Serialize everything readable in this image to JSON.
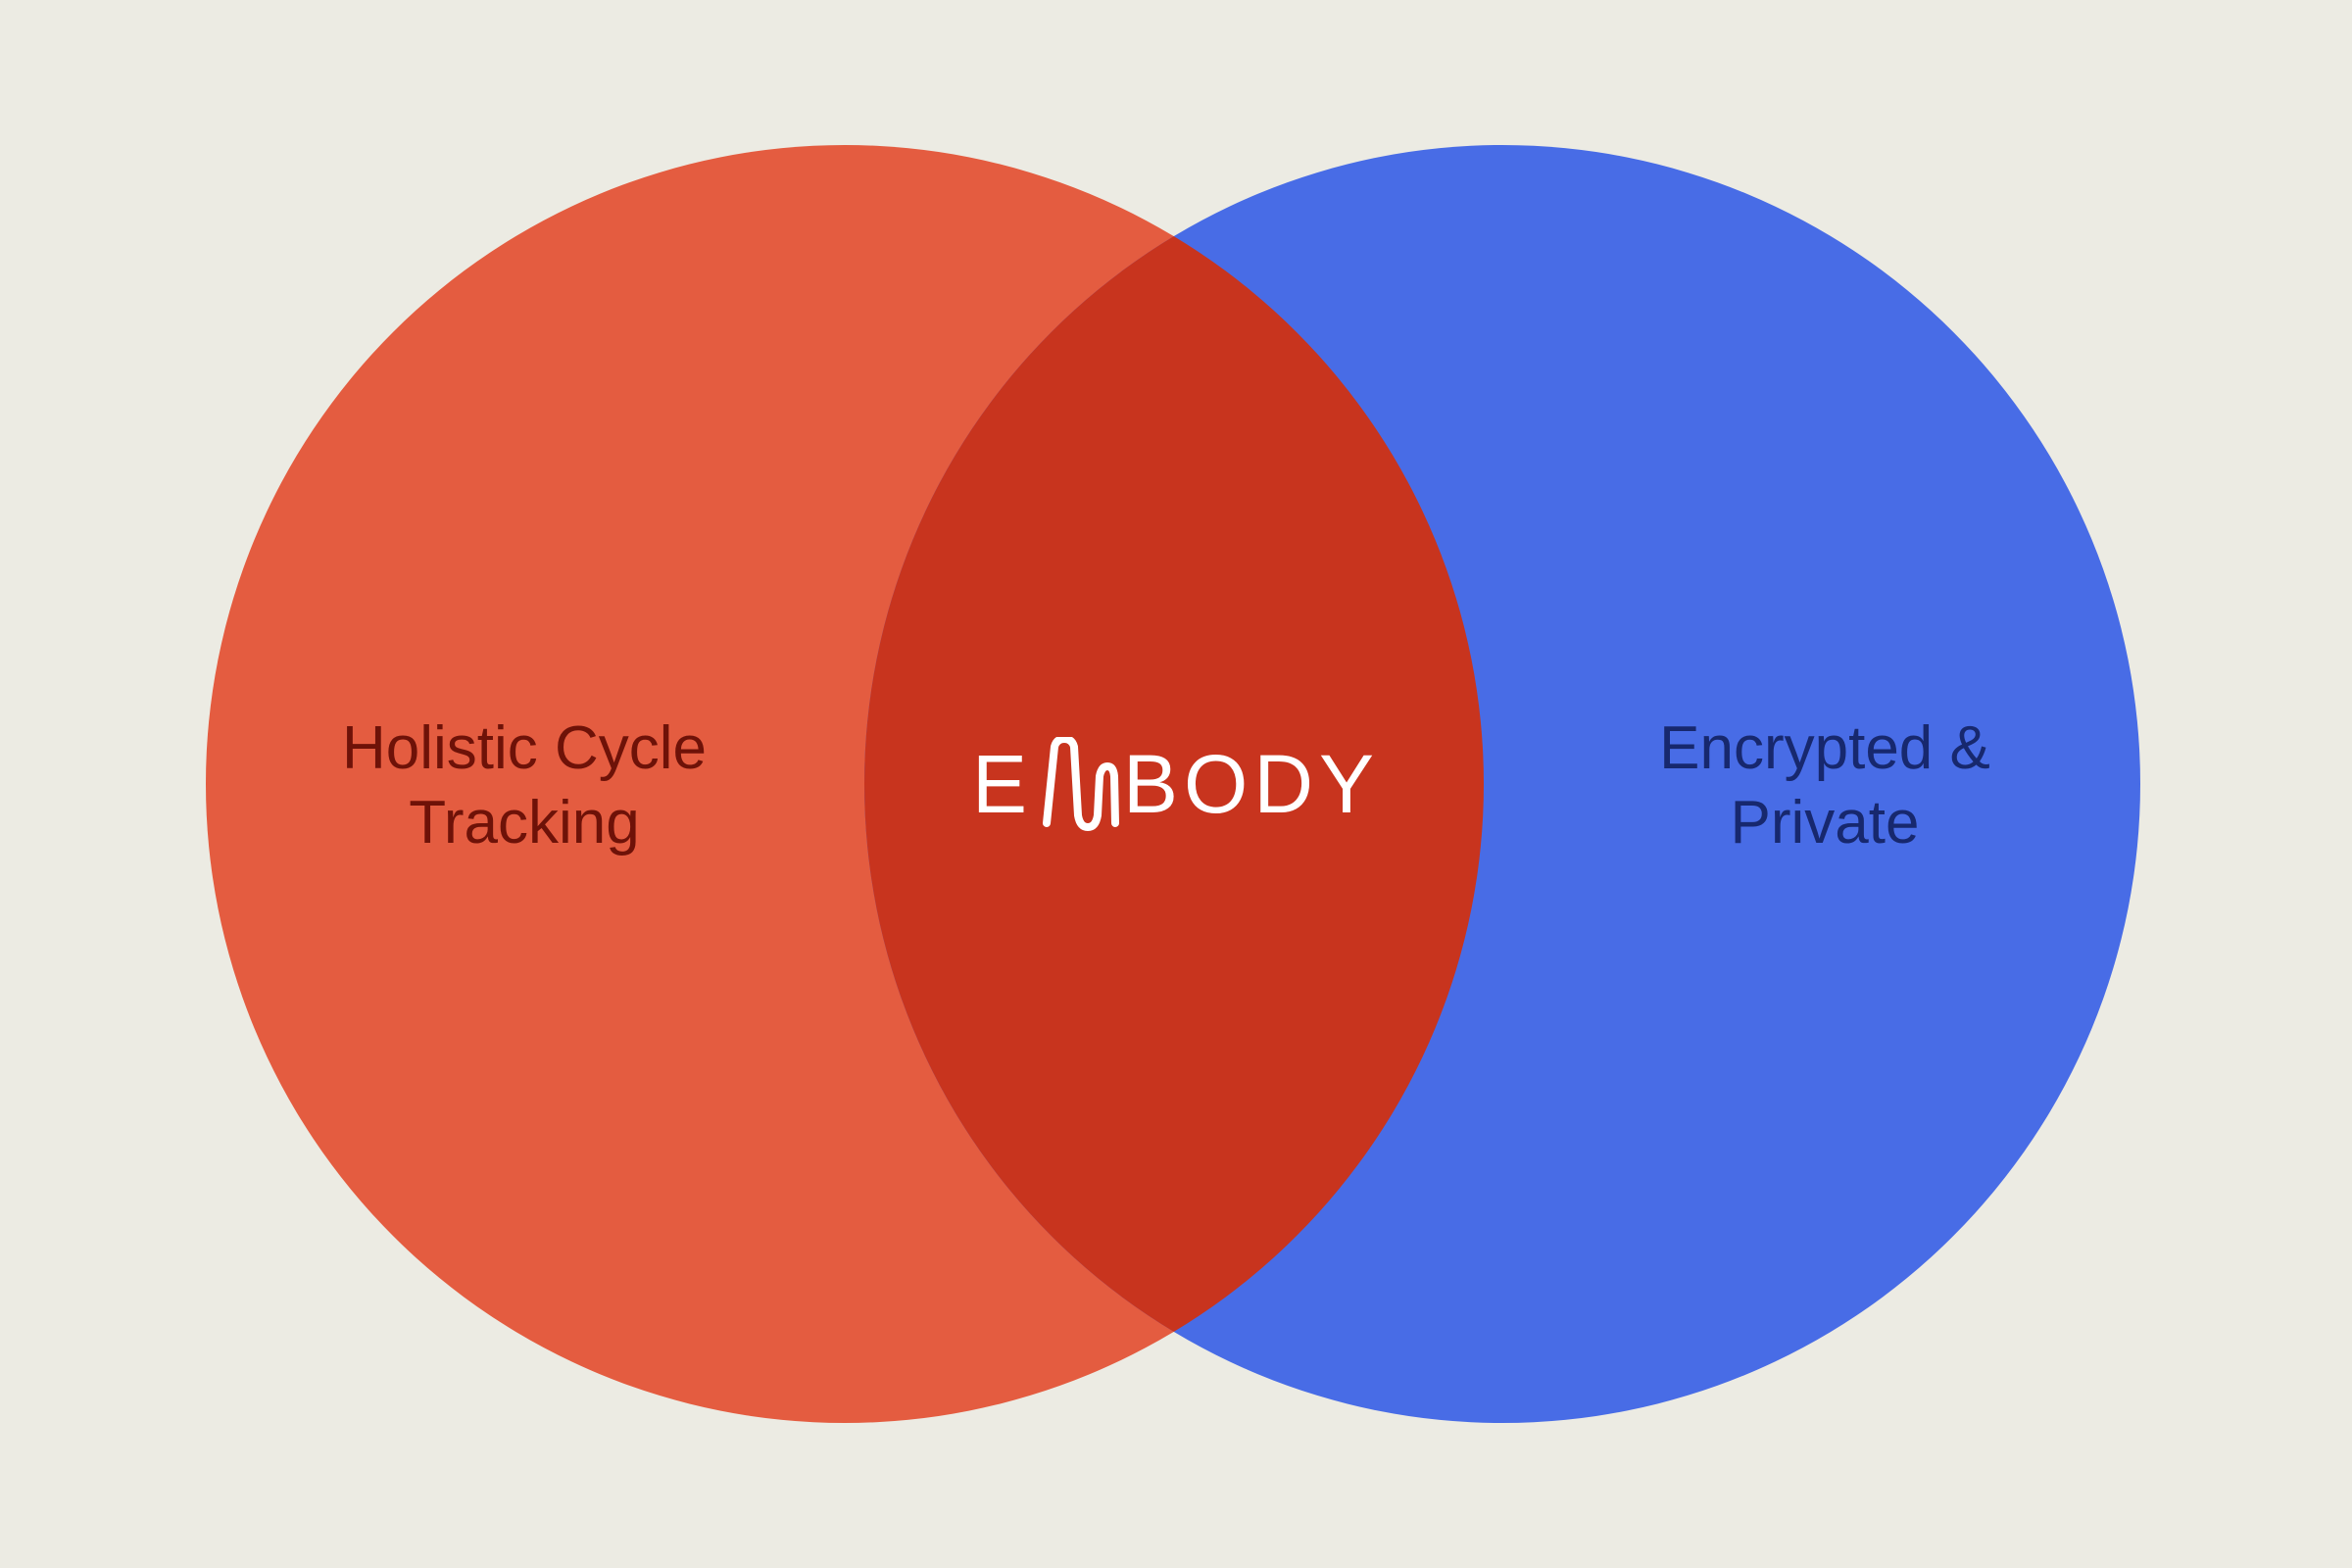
{
  "diagram": {
    "type": "venn",
    "colors": {
      "background": "#ECEBE3",
      "left_circle": "#E45C40",
      "right_circle": "#486CE6",
      "overlap": "#C8341E",
      "left_text": "#6E1208",
      "right_text": "#17286E",
      "logo": "#FFFFFF"
    },
    "left_set": {
      "label_line1": "Holistic Cycle",
      "label_line2": "Tracking"
    },
    "right_set": {
      "label_line1": "Encrypted &",
      "label_line2": "Private"
    },
    "intersection": {
      "logo_first": "E",
      "logo_mark_icon": "wave-m-icon",
      "logo_rest": "BODY",
      "logo_text": "EMBODY"
    }
  }
}
